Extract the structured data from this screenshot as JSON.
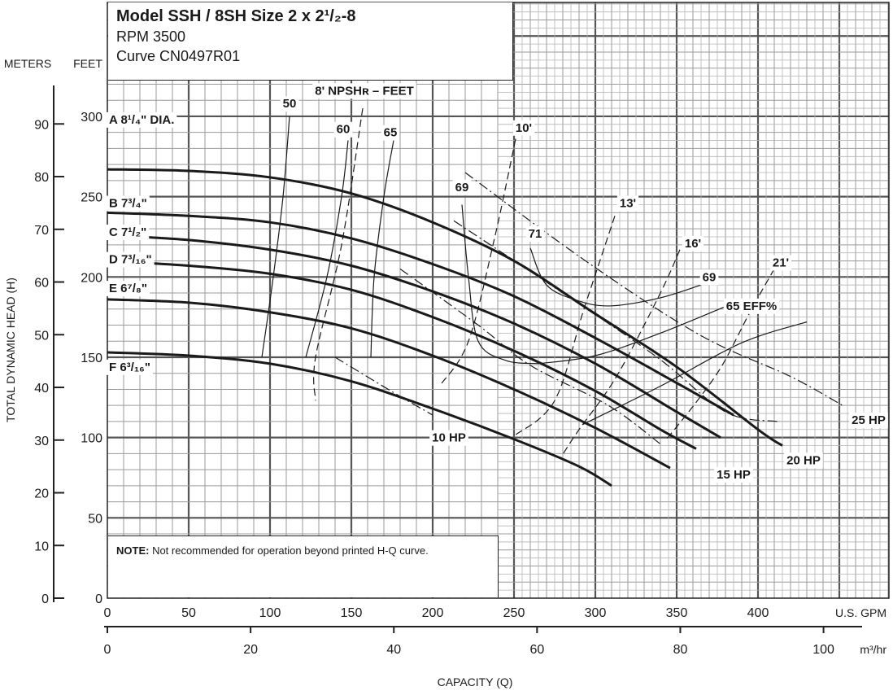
{
  "chart_data": {
    "type": "line",
    "title": "Model SSH / 8SH Size 2 x 2¹/₂-8",
    "subtitle_lines": [
      "RPM 3500",
      "Curve CN0497R01"
    ],
    "note_label": "NOTE:",
    "note_text": " Not recommended for operation beyond printed H-Q curve.",
    "xlabel": "CAPACITY (Q)",
    "ylabel_meters": "TOTAL DYNAMIC HEAD (H)",
    "x_units": {
      "gpm": "U.S. GPM",
      "m3hr": "m³/hr"
    },
    "y_units": {
      "feet": "FEET",
      "meters": "METERS"
    },
    "xlim_gpm": [
      0,
      480
    ],
    "ylim_feet": [
      0,
      330
    ],
    "x_ticks_gpm": [
      "0",
      "50",
      "100",
      "150",
      "200",
      "250",
      "300",
      "350",
      "400"
    ],
    "x_ticks_m3hr": [
      "0",
      "20",
      "40",
      "60",
      "80",
      "100"
    ],
    "y_ticks_feet": [
      "0",
      "50",
      "100",
      "150",
      "200",
      "250",
      "300"
    ],
    "y_ticks_meters": [
      "0",
      "10",
      "20",
      "30",
      "40",
      "50",
      "60",
      "70",
      "80",
      "90"
    ],
    "impeller_curves": [
      {
        "name": "A 8¹/₄\" DIA.",
        "points": [
          [
            0,
            267
          ],
          [
            50,
            266
          ],
          [
            100,
            262
          ],
          [
            150,
            252
          ],
          [
            200,
            234
          ],
          [
            250,
            210
          ],
          [
            300,
            177
          ],
          [
            350,
            144
          ],
          [
            400,
            105
          ],
          [
            415,
            95
          ]
        ]
      },
      {
        "name": "B 7³/₄\"",
        "points": [
          [
            0,
            240
          ],
          [
            50,
            238
          ],
          [
            100,
            234
          ],
          [
            150,
            224
          ],
          [
            200,
            208
          ],
          [
            250,
            188
          ],
          [
            300,
            162
          ],
          [
            350,
            134
          ],
          [
            385,
            114
          ]
        ]
      },
      {
        "name": "C 7¹/₂\"",
        "points": [
          [
            0,
            226
          ],
          [
            50,
            223
          ],
          [
            100,
            217
          ],
          [
            150,
            207
          ],
          [
            200,
            191
          ],
          [
            250,
            171
          ],
          [
            300,
            146
          ],
          [
            350,
            116
          ],
          [
            377,
            100
          ]
        ]
      },
      {
        "name": "D 7³/₁₆\"",
        "points": [
          [
            0,
            210
          ],
          [
            50,
            207
          ],
          [
            100,
            202
          ],
          [
            150,
            192
          ],
          [
            200,
            175
          ],
          [
            250,
            154
          ],
          [
            300,
            129
          ],
          [
            340,
            105
          ],
          [
            362,
            93
          ]
        ]
      },
      {
        "name": "E 6⁷/₈\"",
        "points": [
          [
            0,
            186
          ],
          [
            50,
            184
          ],
          [
            100,
            178
          ],
          [
            150,
            168
          ],
          [
            200,
            151
          ],
          [
            250,
            130
          ],
          [
            300,
            106
          ],
          [
            346,
            81
          ]
        ]
      },
      {
        "name": "F 6³/₁₆\"",
        "points": [
          [
            0,
            153
          ],
          [
            50,
            151
          ],
          [
            100,
            146
          ],
          [
            150,
            135
          ],
          [
            200,
            118
          ],
          [
            250,
            99
          ],
          [
            290,
            82
          ],
          [
            310,
            70
          ]
        ]
      }
    ],
    "efficiency_curves": [
      {
        "label": "50",
        "points": [
          [
            112,
            300
          ],
          [
            108,
            250
          ],
          [
            102,
            200
          ],
          [
            95,
            150
          ]
        ]
      },
      {
        "label": "60",
        "points": [
          [
            148,
            285
          ],
          [
            144,
            250
          ],
          [
            135,
            200
          ],
          [
            122,
            150
          ]
        ]
      },
      {
        "label": "65",
        "points": [
          [
            176,
            285
          ],
          [
            170,
            250
          ],
          [
            164,
            200
          ],
          [
            162,
            150
          ]
        ]
      },
      {
        "label": "69",
        "points": [
          [
            218,
            245
          ],
          [
            222,
            200
          ],
          [
            228,
            160
          ],
          [
            245,
            148
          ],
          [
            265,
            146
          ]
        ]
      },
      {
        "label": "71",
        "points": [
          [
            260,
            218
          ],
          [
            270,
            195
          ],
          [
            290,
            185
          ],
          [
            310,
            182
          ],
          [
            340,
            187
          ],
          [
            365,
            195
          ]
        ]
      },
      {
        "label": "69",
        "points": [
          [
            265,
            146
          ],
          [
            300,
            151
          ],
          [
            340,
            165
          ],
          [
            388,
            185
          ]
        ]
      },
      {
        "label": "65 EFF%",
        "points": [
          [
            292,
            108
          ],
          [
            340,
            132
          ],
          [
            390,
            159
          ],
          [
            430,
            172
          ]
        ]
      }
    ],
    "npshr_curves": [
      {
        "label": "8' NPSHʀ – FEET",
        "points": [
          [
            157,
            305
          ],
          [
            144,
            220
          ],
          [
            128,
            150
          ],
          [
            128,
            123
          ]
        ]
      },
      {
        "label": "10'",
        "points": [
          [
            251,
            286
          ],
          [
            238,
            224
          ],
          [
            222,
            160
          ],
          [
            205,
            133
          ]
        ]
      },
      {
        "label": "13'",
        "points": [
          [
            312,
            238
          ],
          [
            293,
            180
          ],
          [
            275,
            123
          ],
          [
            250,
            101
          ]
        ]
      },
      {
        "label": "16'",
        "points": [
          [
            352,
            217
          ],
          [
            340,
            190
          ],
          [
            313,
            138
          ],
          [
            290,
            105
          ],
          [
            279,
            88
          ]
        ]
      },
      {
        "label": "21'",
        "points": [
          [
            410,
            205
          ],
          [
            395,
            178
          ],
          [
            378,
            145
          ],
          [
            362,
            122
          ],
          [
            343,
            98
          ]
        ]
      }
    ],
    "hp_lines": [
      {
        "label": "10 HP",
        "points": [
          [
            140,
            150
          ],
          [
            176,
            128
          ],
          [
            200,
            114
          ]
        ]
      },
      {
        "label": "15 HP",
        "points": [
          [
            180,
            205
          ],
          [
            228,
            170
          ],
          [
            260,
            145
          ],
          [
            308,
            120
          ],
          [
            340,
            96
          ]
        ]
      },
      {
        "label": "20 HP",
        "points": [
          [
            213,
            235
          ],
          [
            280,
            190
          ],
          [
            338,
            150
          ],
          [
            380,
            116
          ],
          [
            412,
            110
          ]
        ]
      },
      {
        "label": "25 HP",
        "points": [
          [
            220,
            265
          ],
          [
            294,
            210
          ],
          [
            364,
            164
          ],
          [
            420,
            138
          ],
          [
            452,
            120
          ]
        ]
      }
    ],
    "hp_label_positions": {
      "10 HP": [
        210,
        100
      ],
      "15 HP": [
        385,
        77
      ],
      "20 HP": [
        428,
        86
      ],
      "25 HP": [
        468,
        111
      ]
    },
    "impeller_label_ycoords_feet": [
      298,
      246,
      228,
      211,
      193,
      144
    ],
    "colors": {
      "curve": "#1a1a1a",
      "grid": "#8c8c8c",
      "background": "#ffffff"
    }
  }
}
